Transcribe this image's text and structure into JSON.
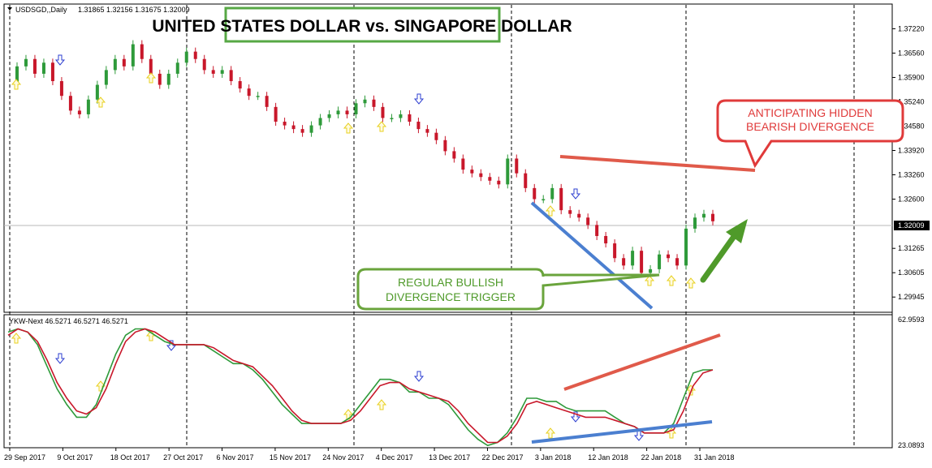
{
  "chart_data": [
    {
      "type": "candlestick",
      "symbol_label": "USDSGD,,Daily",
      "ohlc_label": "1.31865 1.32156 1.31675 1.32009",
      "title": "UNITED STATES DOLLAR vs. SINGAPORE DOLLAR",
      "ylim": [
        1.2962,
        1.3756
      ],
      "y_ticks": [
        "1.37220",
        "1.36560",
        "1.35900",
        "1.35240",
        "1.34580",
        "1.33920",
        "1.33260",
        "1.32600",
        "1.31265",
        "1.30605",
        "1.29945"
      ],
      "current_price": "1.32009",
      "x_ticks": [
        "29 Sep 2017",
        "9 Oct 2017",
        "18 Oct 2017",
        "27 Oct 2017",
        "6 Nov 2017",
        "15 Nov 2017",
        "24 Nov 2017",
        "4 Dec 2017",
        "13 Dec 2017",
        "22 Dec 2017",
        "3 Jan 2018",
        "12 Jan 2018",
        "22 Jan 2018",
        "31 Jan 2018"
      ],
      "close_path": [
        1.357,
        1.362,
        1.364,
        1.36,
        1.363,
        1.358,
        1.354,
        1.35,
        1.349,
        1.353,
        1.357,
        1.361,
        1.364,
        1.362,
        1.368,
        1.364,
        1.36,
        1.357,
        1.36,
        1.363,
        1.366,
        1.364,
        1.361,
        1.36,
        1.361,
        1.358,
        1.356,
        1.354,
        1.354,
        1.351,
        1.347,
        1.346,
        1.345,
        1.344,
        1.346,
        1.348,
        1.349,
        1.35,
        1.349,
        1.352,
        1.353,
        1.351,
        1.348,
        1.348,
        1.349,
        1.347,
        1.345,
        1.344,
        1.342,
        1.339,
        1.337,
        1.334,
        1.333,
        1.332,
        1.331,
        1.33,
        1.337,
        1.333,
        1.329,
        1.326,
        1.326,
        1.329,
        1.323,
        1.322,
        1.321,
        1.319,
        1.316,
        1.314,
        1.31,
        1.308,
        1.312,
        1.306,
        1.307,
        1.311,
        1.31,
        1.308,
        1.318,
        1.321,
        1.322,
        1.32
      ],
      "annotations": [
        "ANTICIPATING HIDDEN BEARISH DIVERGENCE",
        "REGULAR BULLISH DIVERGENCE TRIGGER"
      ],
      "colors": {
        "bull": "#2e9a3a",
        "bear": "#c8172a",
        "title_border": "#57a845",
        "callout_red": "#e03a3a",
        "callout_green": "#6aa43c",
        "trend_red": "#e05a4a",
        "trend_blue": "#4b7fd0",
        "arrow_green": "#4f9a2a"
      }
    },
    {
      "type": "line",
      "indicator_label": "YKW-Next 46.5271 46.5271 46.5271",
      "ylim": [
        23.0893,
        62.9593
      ],
      "y_ticks": [
        "62.9593",
        "23.0893"
      ],
      "series": [
        {
          "values": [
            59,
            60,
            59,
            55,
            48,
            41,
            36,
            32,
            32,
            36,
            44,
            52,
            58,
            60,
            60,
            58,
            56,
            55,
            55,
            55,
            55,
            53,
            51,
            49,
            49,
            47,
            44,
            40,
            36,
            33,
            30,
            30,
            30,
            30,
            30,
            32,
            36,
            40,
            44,
            44,
            43,
            40,
            40,
            38,
            38,
            36,
            32,
            28,
            25,
            23,
            24,
            27,
            32,
            38,
            38,
            37,
            37,
            35,
            34,
            34,
            34,
            34,
            32,
            30,
            29,
            27,
            27,
            27,
            30,
            38,
            46,
            47,
            47
          ]
        },
        {
          "values": [
            58,
            60,
            59,
            56,
            50,
            43,
            38,
            34,
            33,
            35,
            41,
            49,
            56,
            59,
            60,
            59,
            57,
            55,
            55,
            55,
            55,
            54,
            52,
            50,
            49,
            48,
            45,
            42,
            38,
            34,
            31,
            30,
            30,
            30,
            30,
            31,
            34,
            38,
            42,
            43,
            43,
            41,
            40,
            39,
            38,
            37,
            34,
            30,
            27,
            24,
            24,
            26,
            30,
            36,
            37,
            36,
            35,
            34,
            33,
            32,
            32,
            32,
            31,
            30,
            29,
            27,
            27,
            27,
            28,
            34,
            42,
            46,
            47
          ]
        }
      ]
    }
  ],
  "ui": {
    "price_box_label": "1.32009"
  }
}
